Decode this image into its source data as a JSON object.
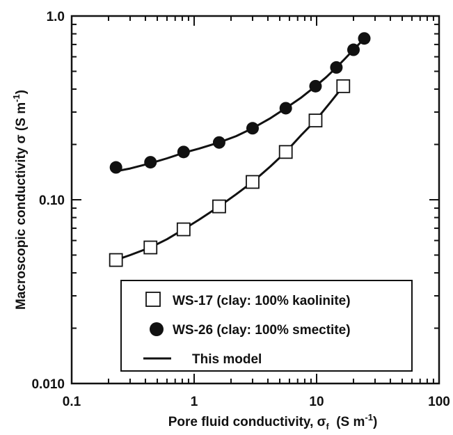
{
  "chart_data": {
    "type": "scatter",
    "x_scale": "log",
    "y_scale": "log",
    "xlim": [
      0.1,
      100
    ],
    "ylim": [
      0.01,
      1.0
    ],
    "xlabel": "Pore fluid conductivity, σ",
    "xlabel_sub": "f",
    "xlabel_unit": "(S m",
    "xlabel_unit_sup": "-1",
    "xlabel_unit_close": ")",
    "ylabel": "Macroscopic conductivity  σ (S m",
    "ylabel_sup": "-1",
    "ylabel_close": ")",
    "x_ticks": [
      {
        "value": 0.1,
        "label": "0.1"
      },
      {
        "value": 1,
        "label": "1"
      },
      {
        "value": 10,
        "label": "10"
      },
      {
        "value": 100,
        "label": "100"
      }
    ],
    "y_ticks": [
      {
        "value": 0.01,
        "label": "0.010"
      },
      {
        "value": 0.1,
        "label": "0.10"
      },
      {
        "value": 1.0,
        "label": "1.0"
      }
    ],
    "grid": false,
    "legend_position": "bottom-right",
    "series": [
      {
        "name": "WS-17 (clay: 100% kaolinite)",
        "marker": "open-square",
        "x": [
          0.23,
          0.44,
          0.82,
          1.6,
          3.0,
          5.6,
          9.8,
          16.5
        ],
        "y": [
          0.047,
          0.055,
          0.069,
          0.092,
          0.125,
          0.182,
          0.27,
          0.415
        ]
      },
      {
        "name": "WS-26 (clay: 100% smectite)",
        "marker": "filled-circle",
        "x": [
          0.23,
          0.44,
          0.82,
          1.6,
          3.0,
          5.6,
          9.8,
          14.5,
          20,
          24.5
        ],
        "y": [
          0.15,
          0.16,
          0.182,
          0.205,
          0.245,
          0.315,
          0.415,
          0.525,
          0.655,
          0.755
        ]
      }
    ],
    "model_curves": [
      {
        "name": "This model",
        "x": [
          0.23,
          0.3,
          0.44,
          0.6,
          0.82,
          1.1,
          1.6,
          2.2,
          3.0,
          4.2,
          5.6,
          7.5,
          9.8,
          13,
          16.5
        ],
        "y": [
          0.047,
          0.05,
          0.055,
          0.061,
          0.069,
          0.078,
          0.092,
          0.107,
          0.125,
          0.152,
          0.182,
          0.225,
          0.27,
          0.34,
          0.415
        ]
      },
      {
        "x": [
          0.23,
          0.3,
          0.44,
          0.6,
          0.82,
          1.1,
          1.6,
          2.2,
          3.0,
          4.2,
          5.6,
          7.5,
          9.8,
          12,
          14.5,
          17,
          20,
          22,
          24.5
        ],
        "y": [
          0.143,
          0.148,
          0.158,
          0.168,
          0.18,
          0.19,
          0.205,
          0.222,
          0.245,
          0.278,
          0.315,
          0.36,
          0.415,
          0.465,
          0.525,
          0.585,
          0.655,
          0.7,
          0.755
        ]
      }
    ]
  }
}
